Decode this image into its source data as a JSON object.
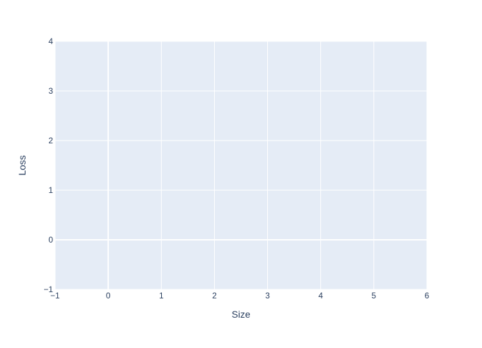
{
  "chart_data": {
    "type": "scatter",
    "title": "",
    "xlabel": "Size",
    "ylabel": "Loss",
    "xlim": [
      -1,
      6
    ],
    "ylim": [
      -1,
      4
    ],
    "x_ticks": [
      -1,
      0,
      1,
      2,
      3,
      4,
      5,
      6
    ],
    "y_ticks": [
      -1,
      0,
      1,
      2,
      3,
      4
    ],
    "x_tick_labels": [
      "−1",
      "0",
      "1",
      "2",
      "3",
      "4",
      "5",
      "6"
    ],
    "y_tick_labels": [
      "−1",
      "0",
      "1",
      "2",
      "3",
      "4"
    ],
    "series": [],
    "grid": true,
    "legend": "none",
    "colors": {
      "plot_background": "#e5ecf6",
      "grid": "#ffffff",
      "text": "#2a3f5f"
    }
  }
}
